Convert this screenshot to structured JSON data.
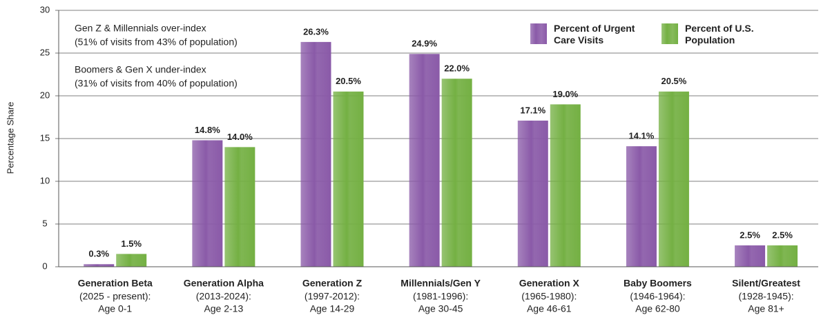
{
  "chart_data": {
    "type": "bar",
    "y_label": "Percentage Share",
    "categories": [
      "Generation Beta",
      "Generation Alpha",
      "Generation Z",
      "Millennials/Gen Y",
      "Generation X",
      "Baby Boomers",
      "Silent/Greatest"
    ],
    "category_years": [
      "(2025 - present):",
      "(2013-2024):",
      "(1997-2012):",
      "(1981-1996):",
      "(1965-1980):",
      "(1946-1964):",
      "(1928-1945):"
    ],
    "category_ages": [
      "Age 0-1",
      "Age 2-13",
      "Age 14-29",
      "Age 30-45",
      "Age 46-61",
      "Age 62-80",
      "Age 81+"
    ],
    "series": [
      {
        "name": "Percent of Urgent Care Visits",
        "color": "#8a5aa8",
        "values": [
          0.3,
          14.8,
          26.3,
          24.9,
          17.1,
          14.1,
          2.5
        ],
        "value_labels": [
          "0.3%",
          "14.8%",
          "26.3%",
          "24.9%",
          "17.1%",
          "14.1%",
          "2.5%"
        ]
      },
      {
        "name": "Percent of U.S. Population",
        "color": "#74b043",
        "values": [
          1.5,
          14.0,
          20.5,
          22.0,
          19.0,
          20.5,
          2.5
        ],
        "value_labels": [
          "1.5%",
          "14.0%",
          "20.5%",
          "22.0%",
          "19.0%",
          "20.5%",
          "2.5%"
        ]
      }
    ],
    "annotations": [
      {
        "text": "Gen Z & Millennials over-index",
        "detail": "(51% of visits from 43% of population)"
      },
      {
        "text": "Boomers & Gen X under-index",
        "detail": "(31% of visits from 40% of population)"
      }
    ],
    "ylim": [
      0,
      30
    ],
    "yticks": [
      0,
      5,
      10,
      15,
      20,
      25,
      30
    ],
    "grid": true,
    "legend": "top-right"
  }
}
